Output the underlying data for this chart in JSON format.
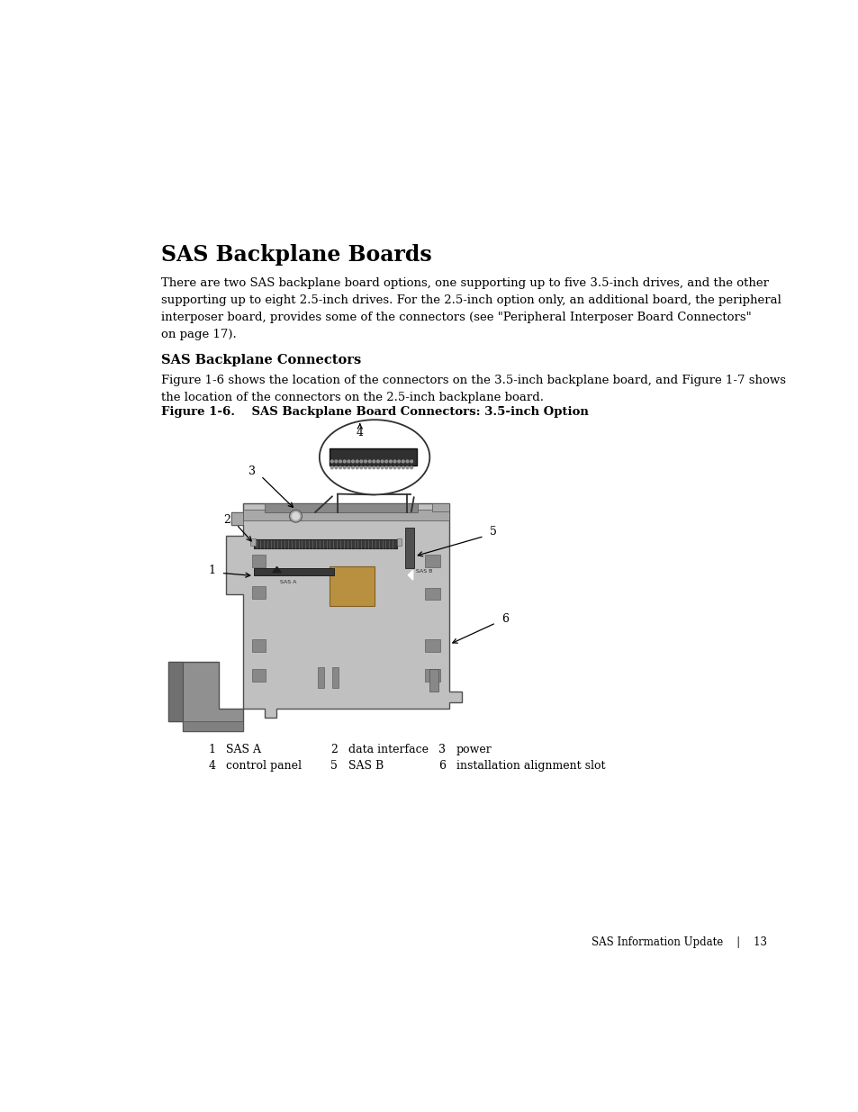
{
  "background_color": "#ffffff",
  "title": "SAS Backplane Boards",
  "title_fontsize": 17,
  "body_text": "There are two SAS backplane board options, one supporting up to five 3.5-inch drives, and the other\nsupporting up to eight 2.5-inch drives. For the 2.5-inch option only, an additional board, the peripheral\ninterposer board, provides some of the connectors (see \"Peripheral Interposer Board Connectors\"\non page 17).",
  "body_fontsize": 9.5,
  "subheading": "SAS Backplane Connectors",
  "subheading_fontsize": 10.5,
  "figure_desc_text": "Figure 1-6 shows the location of the connectors on the 3.5-inch backplane board, and Figure 1-7 shows\nthe location of the connectors on the 2.5-inch backplane board.",
  "figure_desc_fontsize": 9.5,
  "figure_caption": "Figure 1-6.    SAS Backplane Board Connectors: 3.5-inch Option",
  "figure_caption_fontsize": 9.5,
  "legend_items": [
    {
      "num": "1",
      "label": "SAS A"
    },
    {
      "num": "2",
      "label": "data interface"
    },
    {
      "num": "3",
      "label": "power"
    },
    {
      "num": "4",
      "label": "control panel"
    },
    {
      "num": "5",
      "label": "SAS B"
    },
    {
      "num": "6",
      "label": "installation alignment slot"
    }
  ],
  "footer_text": "SAS Information Update    |    13",
  "footer_fontsize": 8.5,
  "text_color": "#000000",
  "board_light": "#c0c0c0",
  "board_medium": "#a8a8a8",
  "board_dark": "#888888",
  "board_edge": "#505050",
  "connector_dark": "#383838",
  "bracket_gray": "#909090"
}
